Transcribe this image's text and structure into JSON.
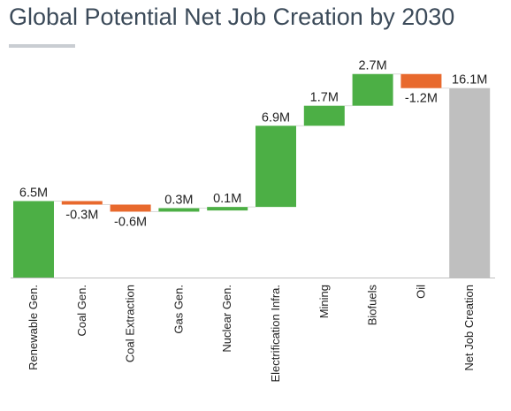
{
  "chart_data": {
    "type": "bar",
    "subtype": "waterfall",
    "title": "Global Potential Net Job Creation by 2030",
    "xlabel": "",
    "ylabel": "",
    "ylim": [
      0,
      17.5
    ],
    "grid": false,
    "legend": "none",
    "categories": [
      "Renewable Gen.",
      "Coal Gen.",
      "Coal Extraction",
      "Gas Gen.",
      "Nuclear Gen.",
      "Electrification Infra.",
      "Mining",
      "Biofuels",
      "Oil",
      "Net Job Creation"
    ],
    "values": [
      6.5,
      -0.3,
      -0.6,
      0.3,
      0.1,
      6.9,
      1.7,
      2.7,
      -1.2,
      16.1
    ],
    "value_labels": [
      "6.5M",
      "-0.3M",
      "-0.6M",
      "0.3M",
      "0.1M",
      "6.9M",
      "1.7M",
      "2.7M",
      "-1.2M",
      "16.1M"
    ],
    "is_total": [
      false,
      false,
      false,
      false,
      false,
      false,
      false,
      false,
      false,
      true
    ],
    "colors": {
      "increase": "#4caf45",
      "decrease": "#e8692d",
      "total": "#bfbfbf",
      "connector": "#d9d9d9",
      "axis": "#bfbfbf"
    }
  }
}
